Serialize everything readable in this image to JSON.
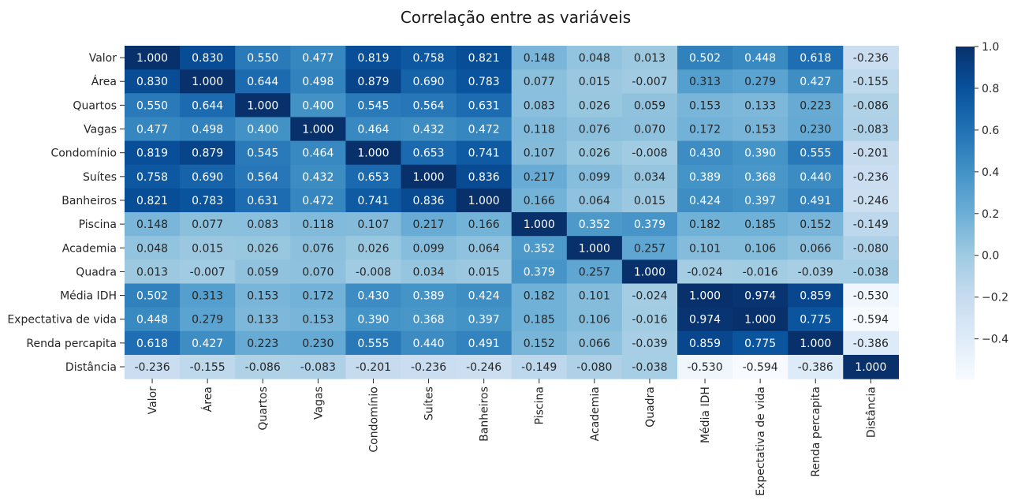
{
  "chart_data": {
    "type": "heatmap",
    "title": "Correlação entre as variáveis",
    "labels": [
      "Valor",
      "Área",
      "Quartos",
      "Vagas",
      "Condomínio",
      "Suítes",
      "Banheiros",
      "Piscina",
      "Academia",
      "Quadra",
      "Média IDH",
      "Expectativa de vida",
      "Renda percapita",
      "Distância"
    ],
    "matrix": [
      [
        "1.000",
        "0.830",
        "0.550",
        "0.477",
        "0.819",
        "0.758",
        "0.821",
        "0.148",
        "0.048",
        "0.013",
        "0.502",
        "0.448",
        "0.618",
        "-0.236"
      ],
      [
        "0.830",
        "1.000",
        "0.644",
        "0.498",
        "0.879",
        "0.690",
        "0.783",
        "0.077",
        "0.015",
        "-0.007",
        "0.313",
        "0.279",
        "0.427",
        "-0.155"
      ],
      [
        "0.550",
        "0.644",
        "1.000",
        "0.400",
        "0.545",
        "0.564",
        "0.631",
        "0.083",
        "0.026",
        "0.059",
        "0.153",
        "0.133",
        "0.223",
        "-0.086"
      ],
      [
        "0.477",
        "0.498",
        "0.400",
        "1.000",
        "0.464",
        "0.432",
        "0.472",
        "0.118",
        "0.076",
        "0.070",
        "0.172",
        "0.153",
        "0.230",
        "-0.083"
      ],
      [
        "0.819",
        "0.879",
        "0.545",
        "0.464",
        "1.000",
        "0.653",
        "0.741",
        "0.107",
        "0.026",
        "-0.008",
        "0.430",
        "0.390",
        "0.555",
        "-0.201"
      ],
      [
        "0.758",
        "0.690",
        "0.564",
        "0.432",
        "0.653",
        "1.000",
        "0.836",
        "0.217",
        "0.099",
        "0.034",
        "0.389",
        "0.368",
        "0.440",
        "-0.236"
      ],
      [
        "0.821",
        "0.783",
        "0.631",
        "0.472",
        "0.741",
        "0.836",
        "1.000",
        "0.166",
        "0.064",
        "0.015",
        "0.424",
        "0.397",
        "0.491",
        "-0.246"
      ],
      [
        "0.148",
        "0.077",
        "0.083",
        "0.118",
        "0.107",
        "0.217",
        "0.166",
        "1.000",
        "0.352",
        "0.379",
        "0.182",
        "0.185",
        "0.152",
        "-0.149"
      ],
      [
        "0.048",
        "0.015",
        "0.026",
        "0.076",
        "0.026",
        "0.099",
        "0.064",
        "0.352",
        "1.000",
        "0.257",
        "0.101",
        "0.106",
        "0.066",
        "-0.080"
      ],
      [
        "0.013",
        "-0.007",
        "0.059",
        "0.070",
        "-0.008",
        "0.034",
        "0.015",
        "0.379",
        "0.257",
        "1.000",
        "-0.024",
        "-0.016",
        "-0.039",
        "-0.038"
      ],
      [
        "0.502",
        "0.313",
        "0.153",
        "0.172",
        "0.430",
        "0.389",
        "0.424",
        "0.182",
        "0.101",
        "-0.024",
        "1.000",
        "0.974",
        "0.859",
        "-0.530"
      ],
      [
        "0.448",
        "0.279",
        "0.133",
        "0.153",
        "0.390",
        "0.368",
        "0.397",
        "0.185",
        "0.106",
        "-0.016",
        "0.974",
        "1.000",
        "0.775",
        "-0.594"
      ],
      [
        "0.618",
        "0.427",
        "0.223",
        "0.230",
        "0.555",
        "0.440",
        "0.491",
        "0.152",
        "0.066",
        "-0.039",
        "0.859",
        "0.775",
        "1.000",
        "-0.386"
      ],
      [
        "-0.236",
        "-0.155",
        "-0.086",
        "-0.083",
        "-0.201",
        "-0.236",
        "-0.246",
        "-0.149",
        "-0.080",
        "-0.038",
        "-0.530",
        "-0.594",
        "-0.386",
        "1.000"
      ]
    ],
    "colorbar": {
      "vmin": -0.594,
      "vmax": 1.0,
      "ticks": [
        {
          "value": -0.4,
          "label": "−0.4"
        },
        {
          "value": -0.2,
          "label": "−0.2"
        },
        {
          "value": 0.0,
          "label": "0.0"
        },
        {
          "value": 0.2,
          "label": "0.2"
        },
        {
          "value": 0.4,
          "label": "0.4"
        },
        {
          "value": 0.6,
          "label": "0.6"
        },
        {
          "value": 0.8,
          "label": "0.8"
        },
        {
          "value": 1.0,
          "label": "1.0"
        }
      ],
      "colormap": "Blues"
    }
  }
}
